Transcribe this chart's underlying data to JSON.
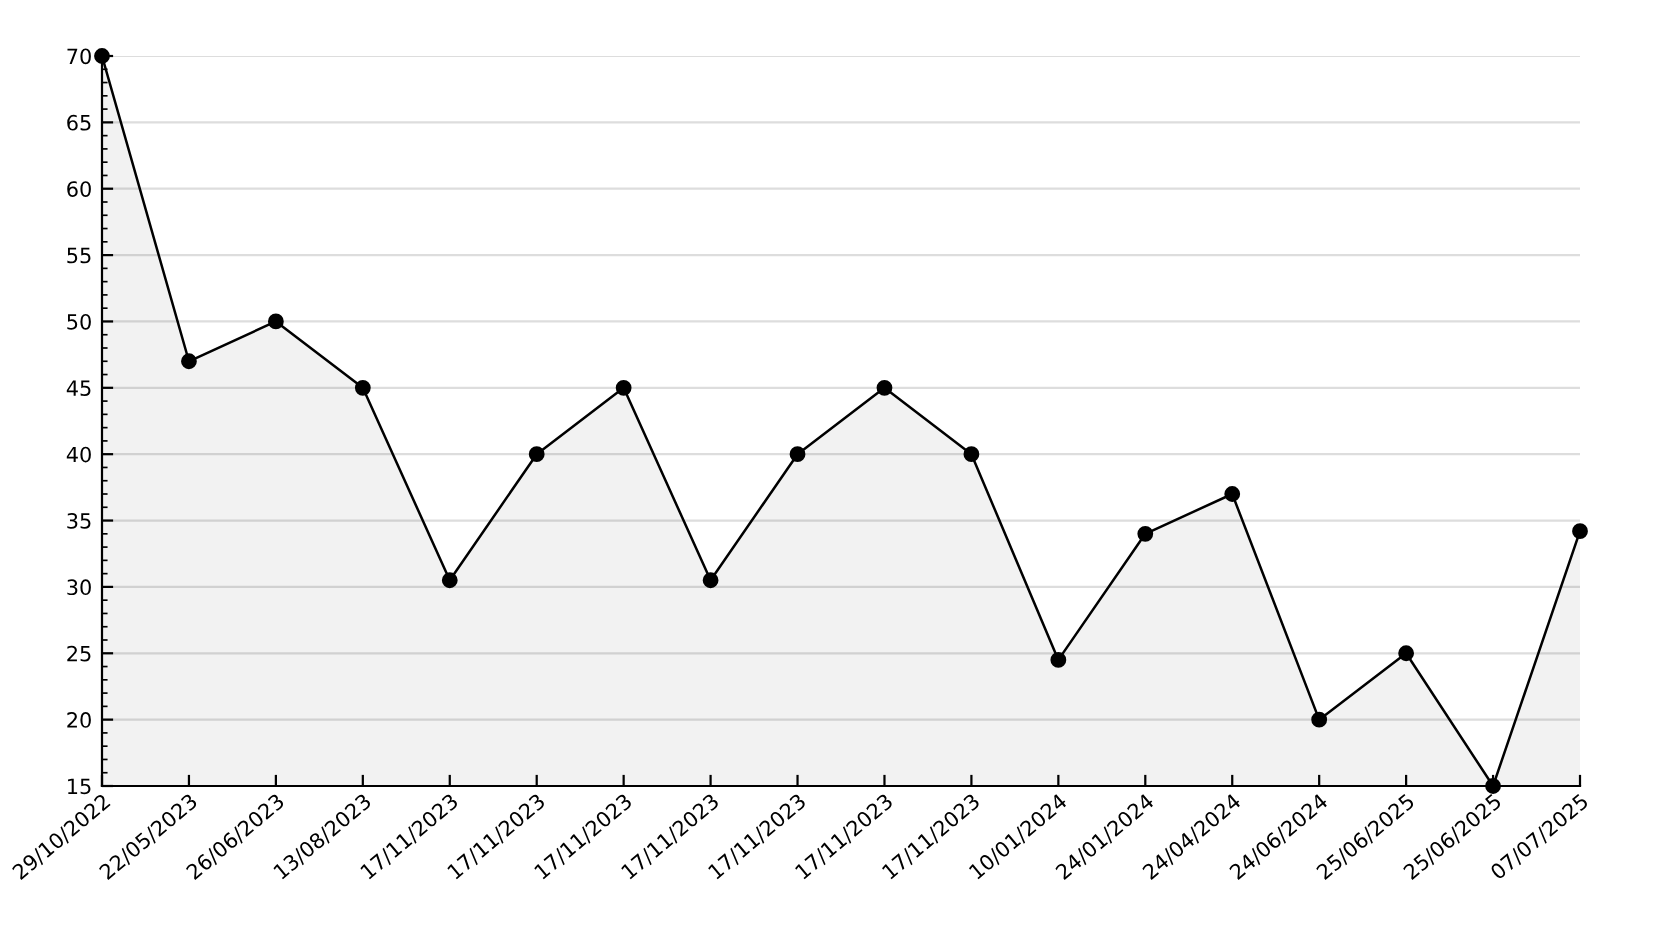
{
  "chart_data": {
    "type": "area",
    "categories": [
      "29/10/2022",
      "22/05/2023",
      "26/06/2023",
      "13/08/2023",
      "17/11/2023",
      "17/11/2023",
      "17/11/2023",
      "17/11/2023",
      "17/11/2023",
      "17/11/2023",
      "17/11/2023",
      "10/01/2024",
      "24/01/2024",
      "24/04/2024",
      "24/06/2024",
      "25/06/2025",
      "25/06/2025",
      "07/07/2025"
    ],
    "series": [
      {
        "color": "#000000",
        "values": [
          70,
          47,
          50,
          45,
          30.5,
          40,
          45,
          30.5,
          40,
          45,
          40,
          24.5,
          34,
          37,
          20,
          25,
          15,
          34.2
        ]
      }
    ],
    "ylim": [
      15,
      70
    ],
    "yticks": [
      15,
      20,
      25,
      30,
      35,
      40,
      45,
      50,
      55,
      60,
      65,
      70
    ],
    "grid": "y",
    "marker": "circle",
    "line_style": "solid",
    "legend": false
  }
}
